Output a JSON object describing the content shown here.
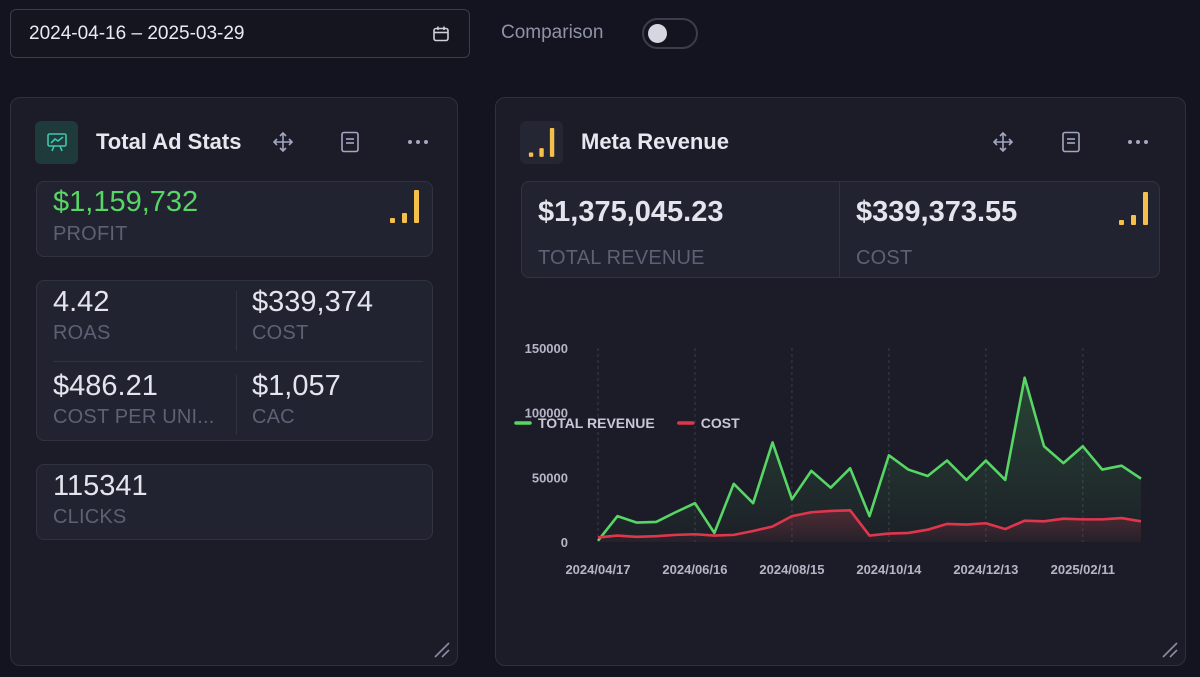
{
  "date_range": {
    "value": "2024-04-16 – 2025-03-29"
  },
  "comparison": {
    "label": "Comparison",
    "enabled": false
  },
  "total_ad_stats": {
    "title": "Total Ad Stats",
    "profit": {
      "value": "$1,159,732",
      "label": "PROFIT"
    },
    "roas": {
      "value": "4.42",
      "label": "ROAS"
    },
    "cost": {
      "value": "$339,374",
      "label": "COST"
    },
    "cost_per_unit": {
      "value": "$486.21",
      "label": "COST PER UNI..."
    },
    "cac": {
      "value": "$1,057",
      "label": "CAC"
    },
    "clicks": {
      "value": "115341",
      "label": "CLICKS"
    }
  },
  "meta_revenue": {
    "title": "Meta Revenue",
    "total_revenue": {
      "value": "$1,375,045.23",
      "label": "TOTAL REVENUE"
    },
    "cost": {
      "value": "$339,373.55",
      "label": "COST"
    }
  },
  "colors": {
    "accent_green": "#57d565",
    "cost_red": "#e0364c",
    "bars_yellow": "#f5c04a",
    "teal_icon": "#3fc7b0"
  },
  "chart_data": {
    "type": "line",
    "x_ticks": [
      "2024/04/17",
      "2024/06/16",
      "2024/08/15",
      "2024/10/14",
      "2024/12/13",
      "2025/02/11"
    ],
    "y_ticks": [
      "150000",
      "100000",
      "50000",
      "0"
    ],
    "ylim": [
      0,
      150000
    ],
    "legend_position": "top-left",
    "series": [
      {
        "name": "TOTAL REVENUE",
        "color": "#57d565",
        "values": [
          1000,
          20000,
          15000,
          15500,
          23000,
          30000,
          7000,
          45000,
          30000,
          77000,
          33000,
          55000,
          42000,
          57000,
          20000,
          67000,
          56000,
          51000,
          63000,
          48000,
          63000,
          48000,
          127000,
          74000,
          61000,
          74000,
          56000,
          59000,
          49000
        ]
      },
      {
        "name": "COST",
        "color": "#e0364c",
        "values": [
          3500,
          5000,
          4000,
          4500,
          5500,
          6000,
          5000,
          5500,
          8500,
          12000,
          20000,
          23000,
          24000,
          24500,
          5000,
          6500,
          7000,
          9500,
          14000,
          13500,
          14500,
          10000,
          16500,
          16000,
          18000,
          17500,
          17500,
          18500,
          16000
        ]
      }
    ]
  }
}
